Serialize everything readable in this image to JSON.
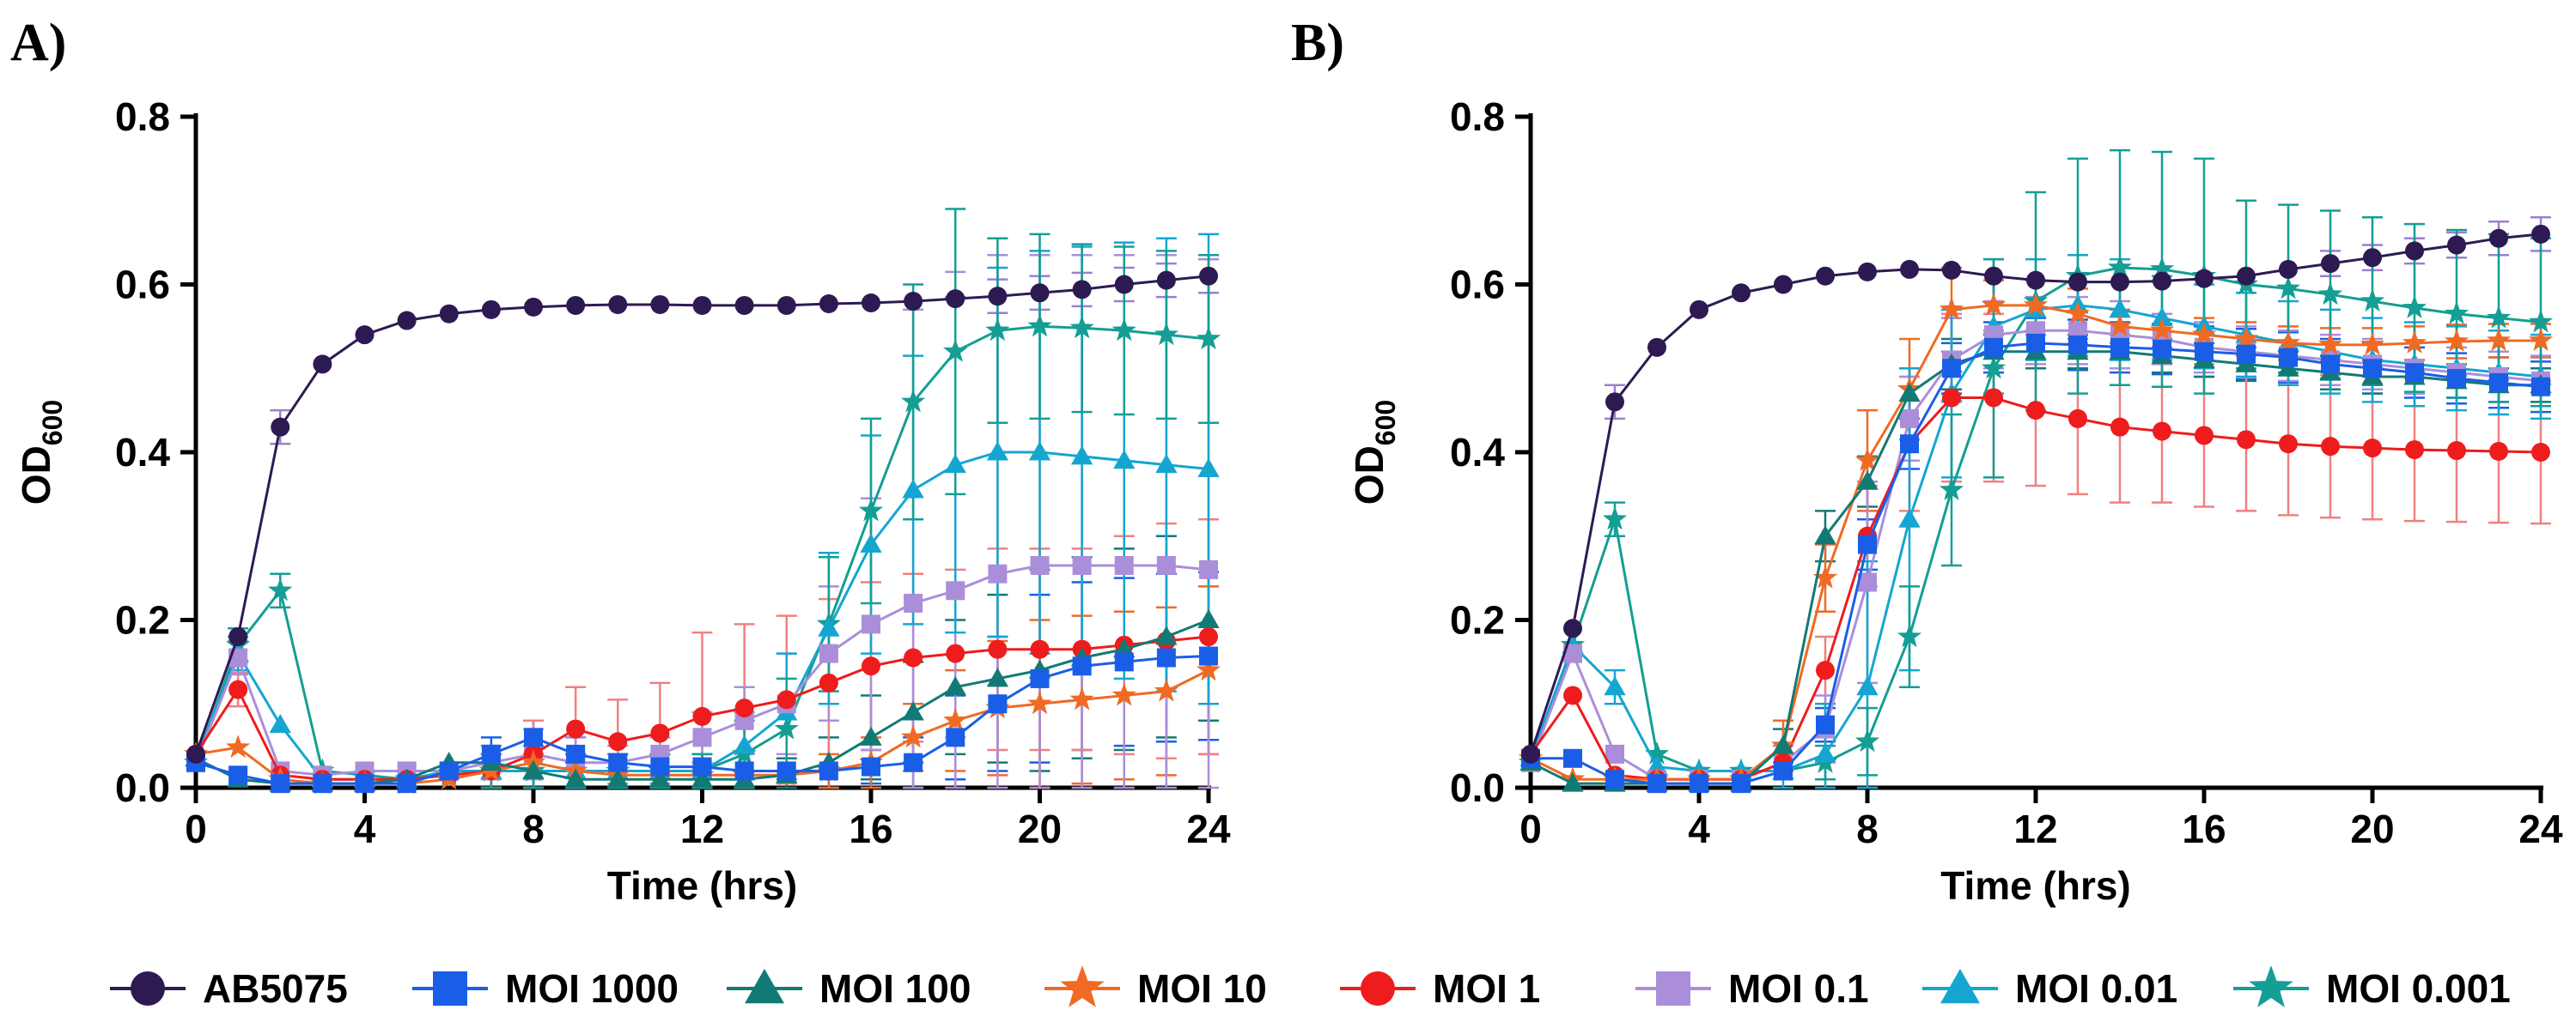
{
  "chart_data": [
    {
      "type": "line",
      "panel_label": "A)",
      "xlabel": "Time (hrs)",
      "ylabel_main": "OD",
      "ylabel_sub": "600",
      "xlim": [
        0,
        24
      ],
      "ylim": [
        0,
        0.8
      ],
      "xticks": [
        0,
        4,
        8,
        12,
        16,
        20,
        24
      ],
      "xtick_labels": [
        "0",
        "4",
        "8",
        "12",
        "16",
        "20",
        "24"
      ],
      "yticks": [
        0.0,
        0.2,
        0.4,
        0.6,
        0.8
      ],
      "ytick_labels": [
        "0.0",
        "0.2",
        "0.4",
        "0.6",
        "0.8"
      ],
      "x": [
        0,
        1,
        2,
        3,
        4,
        5,
        6,
        7,
        8,
        9,
        10,
        11,
        12,
        13,
        14,
        15,
        16,
        17,
        18,
        19,
        20,
        21,
        22,
        23,
        24
      ],
      "series": [
        {
          "name": "AB5075",
          "values": [
            0.04,
            0.18,
            0.43,
            0.505,
            0.54,
            0.557,
            0.565,
            0.57,
            0.573,
            0.575,
            0.576,
            0.576,
            0.575,
            0.575,
            0.575,
            0.577,
            0.578,
            0.58,
            0.583,
            0.586,
            0.59,
            0.594,
            0.6,
            0.605,
            0.61
          ],
          "errors": [
            0.005,
            0.01,
            0.02,
            0.005,
            0.005,
            0.005,
            0.005,
            0.01,
            0.01,
            0.01,
            0.01,
            0.01,
            0.01,
            0.01,
            0.01,
            0.01,
            0.01,
            0.01,
            0.01,
            0.02,
            0.02,
            0.02,
            0.02,
            0.02,
            0.02
          ]
        },
        {
          "name": "MOI 1000",
          "values": [
            0.03,
            0.015,
            0.005,
            0.005,
            0.005,
            0.005,
            0.02,
            0.04,
            0.06,
            0.04,
            0.03,
            0.025,
            0.025,
            0.02,
            0.02,
            0.02,
            0.025,
            0.03,
            0.06,
            0.1,
            0.13,
            0.145,
            0.15,
            0.155,
            0.157
          ],
          "errors": [
            0.005,
            0.005,
            0.005,
            0.005,
            0.005,
            0.005,
            0.01,
            0.02,
            0.02,
            0.02,
            0.01,
            0.01,
            0.01,
            0.01,
            0.01,
            0.01,
            0.02,
            0.03,
            0.05,
            0.08,
            0.1,
            0.1,
            0.1,
            0.1,
            0.1
          ]
        },
        {
          "name": "MOI 100",
          "values": [
            0.035,
            0.01,
            0.005,
            0.005,
            0.005,
            0.01,
            0.03,
            0.03,
            0.02,
            0.01,
            0.01,
            0.01,
            0.01,
            0.01,
            0.015,
            0.03,
            0.06,
            0.09,
            0.12,
            0.13,
            0.14,
            0.155,
            0.165,
            0.18,
            0.2
          ],
          "errors": [
            0.005,
            0.005,
            0.005,
            0.005,
            0.005,
            0.005,
            0.01,
            0.02,
            0.02,
            0.02,
            0.01,
            0.01,
            0.01,
            0.01,
            0.02,
            0.03,
            0.05,
            0.06,
            0.08,
            0.1,
            0.12,
            0.12,
            0.12,
            0.12,
            0.12
          ]
        },
        {
          "name": "MOI 10",
          "values": [
            0.04,
            0.048,
            0.01,
            0.005,
            0.005,
            0.005,
            0.01,
            0.02,
            0.03,
            0.02,
            0.015,
            0.015,
            0.015,
            0.015,
            0.015,
            0.02,
            0.03,
            0.06,
            0.08,
            0.095,
            0.1,
            0.105,
            0.11,
            0.115,
            0.14
          ],
          "errors": [
            0.005,
            0.01,
            0.005,
            0.005,
            0.005,
            0.005,
            0.01,
            0.02,
            0.02,
            0.02,
            0.01,
            0.01,
            0.01,
            0.01,
            0.01,
            0.02,
            0.03,
            0.04,
            0.06,
            0.08,
            0.1,
            0.1,
            0.1,
            0.1,
            0.1
          ]
        },
        {
          "name": "MOI 1",
          "values": [
            0.04,
            0.117,
            0.015,
            0.01,
            0.01,
            0.01,
            0.015,
            0.02,
            0.04,
            0.07,
            0.055,
            0.065,
            0.085,
            0.095,
            0.105,
            0.125,
            0.145,
            0.155,
            0.16,
            0.165,
            0.165,
            0.165,
            0.17,
            0.175,
            0.18
          ],
          "errors": [
            0.005,
            0.02,
            0.005,
            0.005,
            0.005,
            0.005,
            0.01,
            0.02,
            0.04,
            0.05,
            0.05,
            0.06,
            0.1,
            0.1,
            0.1,
            0.1,
            0.1,
            0.1,
            0.1,
            0.12,
            0.12,
            0.12,
            0.13,
            0.14,
            0.14
          ]
        },
        {
          "name": "MOI 0.1",
          "values": [
            0.03,
            0.155,
            0.02,
            0.015,
            0.02,
            0.02,
            0.02,
            0.03,
            0.04,
            0.03,
            0.03,
            0.04,
            0.06,
            0.08,
            0.1,
            0.16,
            0.195,
            0.22,
            0.235,
            0.255,
            0.265,
            0.265,
            0.265,
            0.265,
            0.26
          ],
          "errors": [
            0.005,
            0.02,
            0.005,
            0.005,
            0.005,
            0.005,
            0.01,
            0.02,
            0.03,
            0.03,
            0.02,
            0.02,
            0.03,
            0.04,
            0.06,
            0.08,
            0.15,
            0.35,
            0.38,
            0.38,
            0.37,
            0.37,
            0.37,
            0.37,
            0.37
          ]
        },
        {
          "name": "MOI 0.01",
          "values": [
            0.035,
            0.16,
            0.075,
            0.01,
            0.01,
            0.01,
            0.02,
            0.02,
            0.02,
            0.02,
            0.02,
            0.02,
            0.02,
            0.05,
            0.09,
            0.19,
            0.29,
            0.355,
            0.385,
            0.4,
            0.4,
            0.395,
            0.39,
            0.385,
            0.38
          ],
          "errors": [
            0.005,
            0.02,
            0.01,
            0.005,
            0.005,
            0.005,
            0.01,
            0.02,
            0.02,
            0.02,
            0.02,
            0.02,
            0.02,
            0.04,
            0.07,
            0.09,
            0.13,
            0.16,
            0.2,
            0.22,
            0.24,
            0.25,
            0.26,
            0.27,
            0.28
          ]
        },
        {
          "name": "MOI 0.001",
          "values": [
            0.03,
            0.17,
            0.235,
            0.02,
            0.015,
            0.01,
            0.015,
            0.02,
            0.02,
            0.02,
            0.02,
            0.02,
            0.02,
            0.04,
            0.07,
            0.195,
            0.33,
            0.46,
            0.52,
            0.545,
            0.55,
            0.548,
            0.545,
            0.54,
            0.535
          ],
          "errors": [
            0.005,
            0.02,
            0.02,
            0.005,
            0.005,
            0.005,
            0.01,
            0.02,
            0.02,
            0.02,
            0.02,
            0.02,
            0.02,
            0.04,
            0.06,
            0.08,
            0.11,
            0.14,
            0.17,
            0.11,
            0.11,
            0.1,
            0.1,
            0.1,
            0.1
          ]
        }
      ]
    },
    {
      "type": "line",
      "panel_label": "B)",
      "xlabel": "Time (hrs)",
      "ylabel_main": "OD",
      "ylabel_sub": "600",
      "xlim": [
        0,
        24
      ],
      "ylim": [
        0,
        0.8
      ],
      "xticks": [
        0,
        4,
        8,
        12,
        16,
        20,
        24
      ],
      "xtick_labels": [
        "0",
        "4",
        "8",
        "12",
        "16",
        "20",
        "24"
      ],
      "yticks": [
        0.0,
        0.2,
        0.4,
        0.6,
        0.8
      ],
      "ytick_labels": [
        "0.0",
        "0.2",
        "0.4",
        "0.6",
        "0.8"
      ],
      "x": [
        0,
        1,
        2,
        3,
        4,
        5,
        6,
        7,
        8,
        9,
        10,
        11,
        12,
        13,
        14,
        15,
        16,
        17,
        18,
        19,
        20,
        21,
        22,
        23,
        24
      ],
      "series": [
        {
          "name": "AB5075",
          "values": [
            0.04,
            0.19,
            0.46,
            0.525,
            0.57,
            0.59,
            0.6,
            0.61,
            0.615,
            0.618,
            0.617,
            0.61,
            0.605,
            0.603,
            0.603,
            0.604,
            0.607,
            0.61,
            0.618,
            0.625,
            0.632,
            0.64,
            0.647,
            0.655,
            0.66
          ],
          "errors": [
            0.005,
            0.01,
            0.02,
            0.005,
            0.005,
            0.005,
            0.005,
            0.01,
            0.01,
            0.01,
            0.01,
            0.01,
            0.01,
            0.01,
            0.01,
            0.01,
            0.01,
            0.01,
            0.01,
            0.015,
            0.015,
            0.015,
            0.015,
            0.02,
            0.02
          ]
        },
        {
          "name": "MOI 1000",
          "values": [
            0.035,
            0.035,
            0.01,
            0.005,
            0.005,
            0.005,
            0.02,
            0.075,
            0.29,
            0.41,
            0.5,
            0.525,
            0.53,
            0.528,
            0.525,
            0.523,
            0.52,
            0.517,
            0.513,
            0.505,
            0.5,
            0.495,
            0.488,
            0.483,
            0.478
          ],
          "errors": [
            0.005,
            0.005,
            0.005,
            0.005,
            0.005,
            0.005,
            0.01,
            0.02,
            0.03,
            0.03,
            0.03,
            0.03,
            0.03,
            0.03,
            0.03,
            0.03,
            0.03,
            0.03,
            0.03,
            0.03,
            0.03,
            0.03,
            0.03,
            0.03,
            0.03
          ]
        },
        {
          "name": "MOI 100",
          "values": [
            0.03,
            0.005,
            0.005,
            0.005,
            0.005,
            0.005,
            0.05,
            0.3,
            0.365,
            0.47,
            0.505,
            0.52,
            0.52,
            0.52,
            0.52,
            0.515,
            0.51,
            0.505,
            0.5,
            0.495,
            0.49,
            0.49,
            0.485,
            0.48,
            0.48
          ],
          "errors": [
            0.005,
            0.005,
            0.005,
            0.005,
            0.005,
            0.005,
            0.02,
            0.03,
            0.03,
            0.03,
            0.03,
            0.02,
            0.02,
            0.02,
            0.02,
            0.02,
            0.02,
            0.02,
            0.02,
            0.02,
            0.02,
            0.02,
            0.02,
            0.02,
            0.02
          ]
        },
        {
          "name": "MOI 10",
          "values": [
            0.035,
            0.01,
            0.01,
            0.01,
            0.01,
            0.01,
            0.05,
            0.25,
            0.39,
            0.475,
            0.57,
            0.575,
            0.575,
            0.565,
            0.55,
            0.545,
            0.54,
            0.535,
            0.53,
            0.528,
            0.528,
            0.53,
            0.532,
            0.533,
            0.533
          ],
          "errors": [
            0.005,
            0.005,
            0.005,
            0.005,
            0.005,
            0.005,
            0.03,
            0.04,
            0.06,
            0.06,
            0.05,
            0.03,
            0.03,
            0.03,
            0.02,
            0.02,
            0.02,
            0.02,
            0.02,
            0.02,
            0.02,
            0.02,
            0.02,
            0.02,
            0.02
          ]
        },
        {
          "name": "MOI 1",
          "values": [
            0.04,
            0.11,
            0.015,
            0.01,
            0.01,
            0.01,
            0.03,
            0.14,
            0.3,
            0.41,
            0.465,
            0.465,
            0.45,
            0.44,
            0.43,
            0.425,
            0.42,
            0.415,
            0.41,
            0.407,
            0.405,
            0.403,
            0.402,
            0.401,
            0.4
          ],
          "errors": [
            0.005,
            0.01,
            0.005,
            0.005,
            0.005,
            0.005,
            0.02,
            0.04,
            0.06,
            0.08,
            0.1,
            0.1,
            0.09,
            0.09,
            0.09,
            0.085,
            0.085,
            0.085,
            0.085,
            0.085,
            0.085,
            0.085,
            0.085,
            0.085,
            0.085
          ]
        },
        {
          "name": "MOI 0.1",
          "values": [
            0.03,
            0.16,
            0.04,
            0.01,
            0.01,
            0.01,
            0.03,
            0.07,
            0.245,
            0.44,
            0.51,
            0.54,
            0.545,
            0.545,
            0.54,
            0.535,
            0.525,
            0.52,
            0.515,
            0.51,
            0.505,
            0.5,
            0.495,
            0.49,
            0.485
          ],
          "errors": [
            0.005,
            0.01,
            0.005,
            0.005,
            0.005,
            0.005,
            0.02,
            0.04,
            0.12,
            0.05,
            0.05,
            0.04,
            0.04,
            0.04,
            0.04,
            0.03,
            0.03,
            0.03,
            0.03,
            0.03,
            0.03,
            0.03,
            0.03,
            0.03,
            0.03
          ]
        },
        {
          "name": "MOI 0.01",
          "values": [
            0.035,
            0.17,
            0.12,
            0.025,
            0.02,
            0.02,
            0.02,
            0.04,
            0.12,
            0.32,
            0.47,
            0.55,
            0.57,
            0.575,
            0.57,
            0.56,
            0.55,
            0.54,
            0.53,
            0.52,
            0.51,
            0.505,
            0.5,
            0.495,
            0.49
          ],
          "errors": [
            0.005,
            0.01,
            0.02,
            0.005,
            0.005,
            0.005,
            0.02,
            0.06,
            0.15,
            0.18,
            0.1,
            0.08,
            0.06,
            0.06,
            0.06,
            0.05,
            0.05,
            0.05,
            0.05,
            0.05,
            0.05,
            0.05,
            0.05,
            0.05,
            0.05
          ]
        },
        {
          "name": "MOI 0.001",
          "values": [
            0.03,
            0.17,
            0.32,
            0.04,
            0.02,
            0.02,
            0.02,
            0.03,
            0.055,
            0.18,
            0.355,
            0.5,
            0.58,
            0.61,
            0.62,
            0.618,
            0.61,
            0.6,
            0.595,
            0.588,
            0.58,
            0.572,
            0.565,
            0.56,
            0.555
          ],
          "errors": [
            0.005,
            0.01,
            0.02,
            0.01,
            0.005,
            0.005,
            0.01,
            0.02,
            0.04,
            0.06,
            0.09,
            0.13,
            0.13,
            0.14,
            0.14,
            0.14,
            0.14,
            0.1,
            0.1,
            0.1,
            0.1,
            0.1,
            0.1,
            0.1,
            0.1
          ]
        }
      ]
    }
  ],
  "legend": [
    {
      "name": "AB5075",
      "color": "#2e1a53",
      "marker": "circle"
    },
    {
      "name": "MOI 1000",
      "color": "#1a5ee8",
      "marker": "square"
    },
    {
      "name": "MOI 100",
      "color": "#127a74",
      "marker": "triangle"
    },
    {
      "name": "MOI 10",
      "color": "#f06a24",
      "marker": "star"
    },
    {
      "name": "MOI 1",
      "color": "#ee1c1c",
      "marker": "circle"
    },
    {
      "name": "MOI 0.1",
      "color": "#ab8ed9",
      "marker": "square"
    },
    {
      "name": "MOI 0.01",
      "color": "#14a6d0",
      "marker": "triangle"
    },
    {
      "name": "MOI 0.001",
      "color": "#149e94",
      "marker": "star"
    }
  ]
}
